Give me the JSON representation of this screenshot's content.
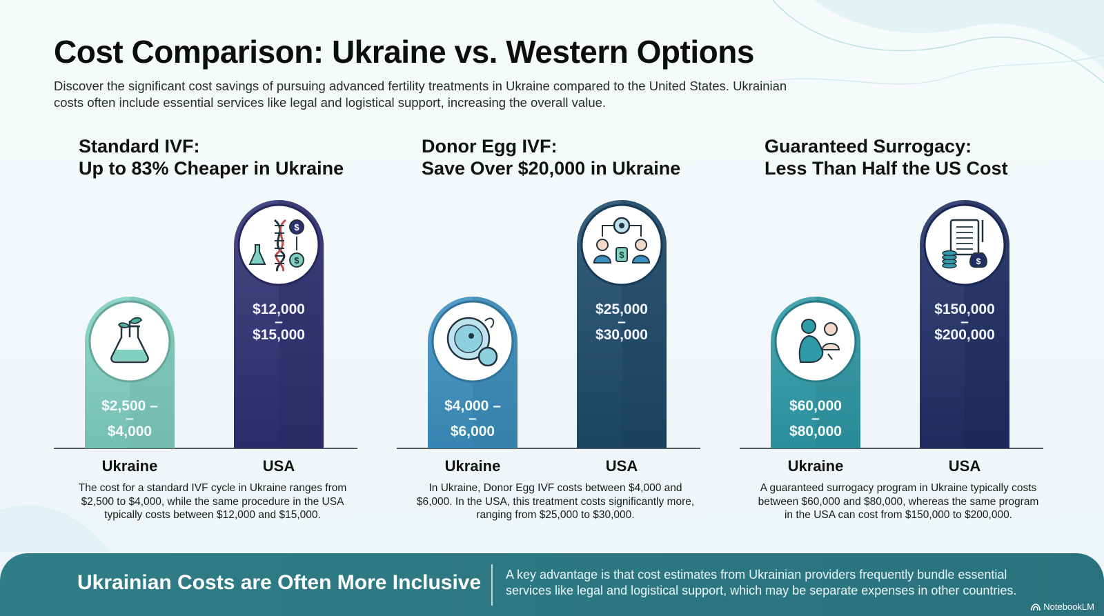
{
  "title": "Cost Comparison: Ukraine vs. Western Options",
  "subtitle": "Discover the significant cost savings of pursuing advanced fertility treatments in Ukraine compared to the United States. Ukrainian costs often include essential services like legal and logistical support, increasing the overall value.",
  "chart_data": [
    {
      "type": "bar",
      "title": "Standard IVF:",
      "subtitle": "Up to 83% Cheaper in Ukraine",
      "categories": [
        "Ukraine",
        "USA"
      ],
      "values_low": [
        2500,
        12000
      ],
      "values_high": [
        4000,
        15000
      ],
      "labels": [
        [
          "$2,500 –",
          "–",
          "$4,000"
        ],
        [
          "$12,000",
          "–",
          "$15,000"
        ]
      ],
      "icons": [
        "plant-flask-icon",
        "dna-lab-cost-icon"
      ],
      "colors": [
        "#7fd0c0",
        "#2e2f72"
      ],
      "description": "The cost for a standard IVF cycle in Ukraine ranges from $2,500 to $4,000, while the same procedure in the USA typically costs between $12,000 and $15,000."
    },
    {
      "type": "bar",
      "title": "Donor Egg IVF:",
      "subtitle": "Save Over $20,000 in Ukraine",
      "categories": [
        "Ukraine",
        "USA"
      ],
      "values_low": [
        4000,
        25000
      ],
      "values_high": [
        6000,
        30000
      ],
      "labels": [
        [
          "$4,000 –",
          "–",
          "$6,000"
        ],
        [
          "$25,000",
          "–",
          "$30,000"
        ]
      ],
      "icons": [
        "egg-cell-icon",
        "donor-people-icon"
      ],
      "colors": [
        "#3b8fc0",
        "#1d4a6b"
      ],
      "description": "In Ukraine, Donor Egg IVF costs between $4,000 and $6,000. In the USA, this treatment costs significantly more, ranging from $25,000 to $30,000."
    },
    {
      "type": "bar",
      "title": "Guaranteed Surrogacy:",
      "subtitle": "Less Than Half the US Cost",
      "categories": [
        "Ukraine",
        "USA"
      ],
      "values_low": [
        60000,
        150000
      ],
      "values_high": [
        80000,
        200000
      ],
      "labels": [
        [
          "$60,000",
          "–",
          "$80,000"
        ],
        [
          "$150,000",
          "–",
          "$200,000"
        ]
      ],
      "icons": [
        "pregnant-family-icon",
        "contract-money-icon"
      ],
      "colors": [
        "#2f9aa8",
        "#1f2f66"
      ],
      "description": "A guaranteed surrogacy program in Ukraine typically costs between $60,000 and $80,000, whereas the same program in the USA can cost from $150,000 to $200,000."
    }
  ],
  "footer": {
    "title": "Ukrainian Costs are Often More Inclusive",
    "text": "A key advantage is that cost estimates from Ukrainian providers frequently bundle essential services like legal and logistical support, which may be separate expenses in other countries.",
    "brand": "NotebookLM"
  }
}
